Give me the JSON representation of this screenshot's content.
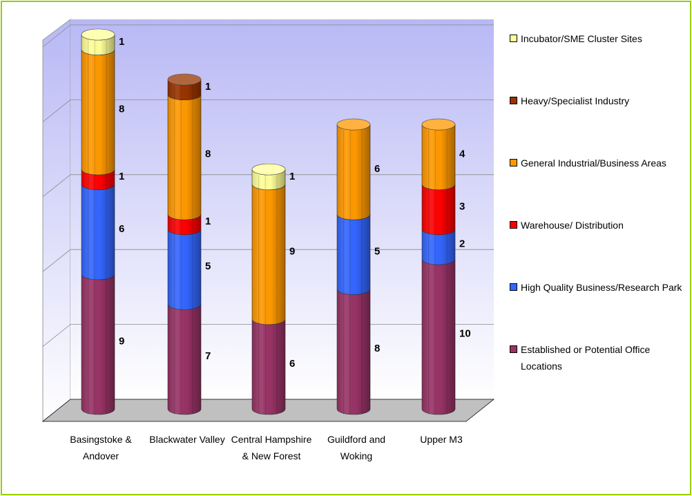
{
  "chart_data": {
    "type": "bar3d-stacked",
    "categories": [
      "Basingstoke & Andover",
      "Blackwater Valley",
      "Central Hampshire & New Forest",
      "Guildford and Woking",
      "Upper M3"
    ],
    "series": [
      {
        "name": "Established or Potential Office Locations",
        "color": "#993366",
        "values": [
          9,
          7,
          6,
          8,
          10
        ]
      },
      {
        "name": "High Quality Business/Research Park",
        "color": "#3366ff",
        "values": [
          6,
          5,
          null,
          5,
          2
        ]
      },
      {
        "name": "Warehouse/ Distribution",
        "color": "#ff0000",
        "values": [
          1,
          1,
          null,
          null,
          3
        ]
      },
      {
        "name": "General Industrial/Business Areas",
        "color": "#ff9900",
        "values": [
          8,
          8,
          9,
          6,
          4
        ]
      },
      {
        "name": "Heavy/Specialist Industry",
        "color": "#993300",
        "values": [
          null,
          1,
          null,
          null,
          null
        ]
      },
      {
        "name": "Incubator/SME Cluster Sites",
        "color": "#ffff99",
        "values": [
          1,
          null,
          1,
          null,
          null
        ]
      }
    ],
    "ylim": [
      0,
      25
    ],
    "yticks": [
      0,
      5,
      10,
      15,
      20,
      25
    ],
    "grid": true
  }
}
